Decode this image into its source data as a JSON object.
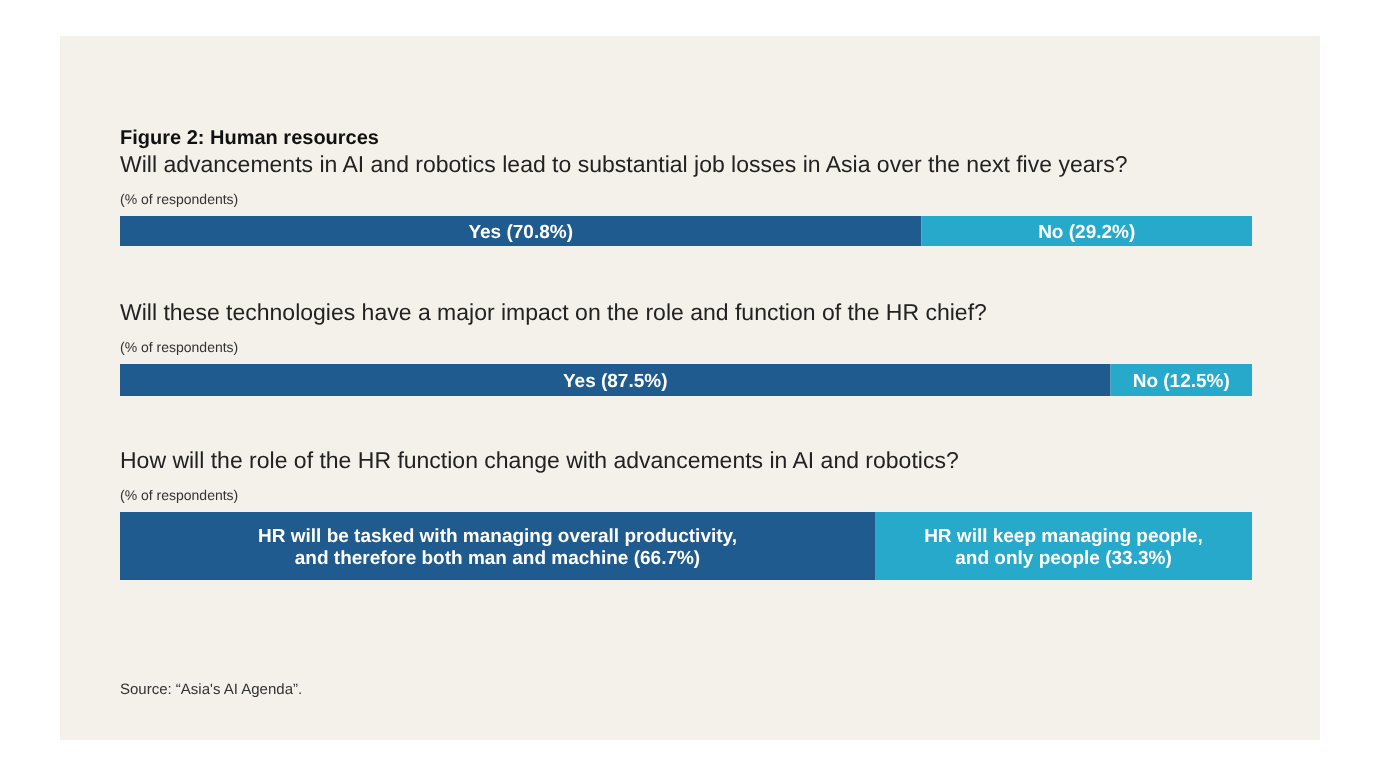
{
  "chart_data": [
    {
      "type": "bar",
      "orientation": "horizontal",
      "stacked": true,
      "title": "Will advancements in AI and robotics lead to substantial job losses in Asia over the next five years?",
      "subtitle": "(% of respondents)",
      "annotations": [
        "Figure 2: Human resources"
      ],
      "categories": [
        null
      ],
      "xlim": [
        0,
        100
      ],
      "tick_labels": false,
      "series": [
        {
          "color": "#1f5b8e",
          "values": [
            70.8
          ],
          "value_labels": [
            "Yes (70.8%)"
          ]
        },
        {
          "color": "#27a9cb",
          "values": [
            29.2
          ],
          "value_labels": [
            "No (29.2%)"
          ]
        }
      ]
    },
    {
      "type": "bar",
      "orientation": "horizontal",
      "stacked": true,
      "title": "Will these technologies have a major impact on the role and function of the HR chief?",
      "subtitle": "(% of respondents)",
      "categories": [
        null
      ],
      "xlim": [
        0,
        100
      ],
      "tick_labels": false,
      "series": [
        {
          "color": "#1f5b8e",
          "values": [
            87.5
          ],
          "value_labels": [
            "Yes (87.5%)"
          ]
        },
        {
          "color": "#27a9cb",
          "values": [
            12.5
          ],
          "value_labels": [
            "No (12.5%)"
          ]
        }
      ]
    },
    {
      "type": "bar",
      "orientation": "horizontal",
      "stacked": true,
      "title": "How will the role of the HR function change with advancements in AI and robotics?",
      "subtitle": "(% of respondents)",
      "annotations": [
        "Source: “Asia's AI Agenda”."
      ],
      "categories": [
        null
      ],
      "xlim": [
        0,
        100
      ],
      "tick_labels": false,
      "series": [
        {
          "color": "#1f5b8e",
          "values": [
            66.7
          ],
          "value_labels": [
            "HR will be tasked with managing overall productivity,\nand therefore both man and machine (66.7%)"
          ]
        },
        {
          "color": "#27a9cb",
          "values": [
            33.3
          ],
          "value_labels": [
            "HR will keep managing people,\nand only people (33.3%)"
          ]
        }
      ]
    }
  ]
}
